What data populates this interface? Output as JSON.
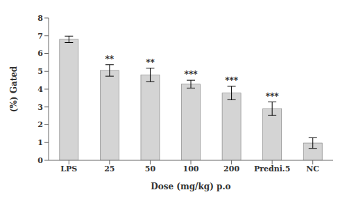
{
  "chart_data": {
    "type": "bar",
    "categories": [
      "LPS",
      "25",
      "50",
      "100",
      "200",
      "Predni.5",
      "NC"
    ],
    "values": [
      6.8,
      5.05,
      4.8,
      4.28,
      3.78,
      2.9,
      0.97
    ],
    "errors": [
      0.18,
      0.32,
      0.38,
      0.22,
      0.38,
      0.38,
      0.3
    ],
    "significance": [
      null,
      "**",
      "**",
      "***",
      "***",
      "***",
      null
    ],
    "color": "#d4d4d4",
    "xlabel": "Dose (mg/kg) p.o",
    "ylabel": "(%) Gated",
    "ylim": [
      0,
      8
    ],
    "yticks": [
      0,
      1,
      2,
      3,
      4,
      5,
      6,
      7,
      8
    ],
    "grid": false
  }
}
